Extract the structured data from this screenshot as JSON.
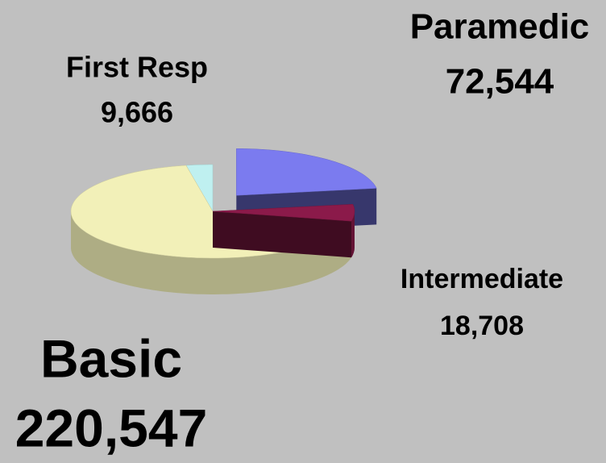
{
  "chart_data": {
    "type": "pie",
    "categories": [
      "Paramedic",
      "Intermediate",
      "Basic",
      "First Resp"
    ],
    "values": [
      72544,
      18708,
      220547,
      9666
    ],
    "value_labels": [
      "72,544",
      "18,708",
      "220,547",
      "9,666"
    ],
    "colors": [
      "#7b7bef",
      "#8b1a4a",
      "#f2f0b8",
      "#bff0f0"
    ],
    "exploded": "Paramedic"
  }
}
